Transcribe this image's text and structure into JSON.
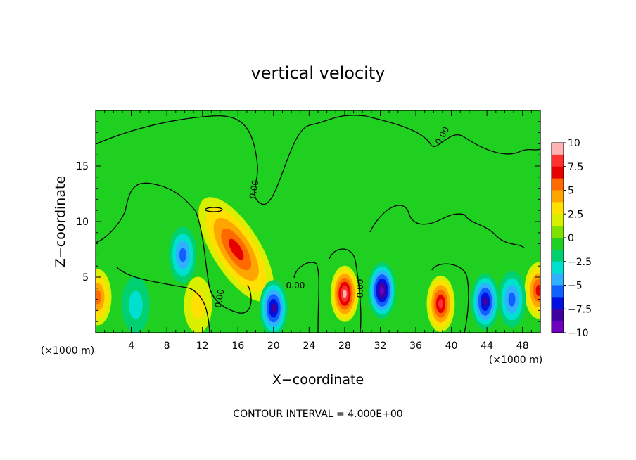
{
  "chart_data": {
    "type": "heatmap",
    "title": "vertical velocity",
    "xlabel": "X−coordinate",
    "ylabel": "Z−coordinate",
    "x_unit_left": "(×1000 m)",
    "x_unit_right": "(×1000 m)",
    "xlim": [
      0,
      50
    ],
    "ylim": [
      0,
      20
    ],
    "x_ticks": [
      4,
      8,
      12,
      16,
      20,
      24,
      28,
      32,
      36,
      40,
      44,
      48
    ],
    "y_ticks": [
      5,
      10,
      15
    ],
    "colorbar": {
      "ticks": [
        "10",
        "7.5",
        "5",
        "2.5",
        "0",
        "−2.5",
        "−5",
        "−7.5",
        "−10"
      ],
      "range": [
        -10,
        10
      ],
      "colors": [
        "#ffb3b3",
        "#ff3030",
        "#e60000",
        "#ff6a00",
        "#ffa500",
        "#ffe000",
        "#d8f000",
        "#80e000",
        "#20d020",
        "#00d070",
        "#00e0d0",
        "#30b0ff",
        "#1060ff",
        "#0010e0",
        "#4000a0",
        "#7000c0"
      ]
    },
    "contour_labels": [
      "0.00",
      "0.00",
      "0.00",
      "0.00",
      "0.00"
    ],
    "features": [
      {
        "x": 15.8,
        "z": 7.5,
        "w": 6,
        "kind": "updraft"
      },
      {
        "x": 28.0,
        "z": 3.5,
        "w": 9,
        "kind": "updraft"
      },
      {
        "x": 38.8,
        "z": 2.6,
        "w": 7,
        "kind": "updraft"
      },
      {
        "x": 49.8,
        "z": 3.8,
        "w": 6,
        "kind": "updraft"
      },
      {
        "x": 0.2,
        "z": 3.2,
        "w": 5,
        "kind": "updraft"
      },
      {
        "x": 11.5,
        "z": 2.5,
        "w": 3,
        "kind": "updraft"
      },
      {
        "x": 20.0,
        "z": 2.2,
        "w": -8,
        "kind": "downdraft"
      },
      {
        "x": 32.2,
        "z": 3.8,
        "w": -9,
        "kind": "downdraft"
      },
      {
        "x": 43.8,
        "z": 2.8,
        "w": -7,
        "kind": "downdraft"
      },
      {
        "x": 46.8,
        "z": 3.0,
        "w": -5,
        "kind": "downdraft"
      },
      {
        "x": 9.8,
        "z": 7.0,
        "w": -5,
        "kind": "downdraft"
      },
      {
        "x": 4.5,
        "z": 2.5,
        "w": -3,
        "kind": "downdraft"
      }
    ]
  },
  "footer_text": "CONTOUR INTERVAL = 4.000E+00"
}
